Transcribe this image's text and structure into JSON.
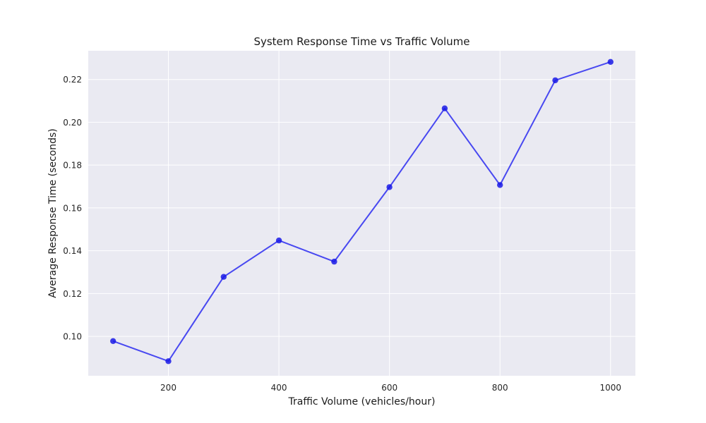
{
  "chart_data": {
    "type": "line",
    "title": "System Response Time vs Traffic Volume",
    "xlabel": "Traffic Volume (vehicles/hour)",
    "ylabel": "Average Response Time (seconds)",
    "x": [
      100,
      200,
      300,
      400,
      500,
      600,
      700,
      800,
      900,
      1000
    ],
    "series": [
      {
        "values": [
          0.0978,
          0.0884,
          0.1278,
          0.1448,
          0.1349,
          0.1697,
          0.2065,
          0.1707,
          0.2196,
          0.2282
        ]
      }
    ],
    "xlim": [
      55,
      1045
    ],
    "ylim": [
      0.0816,
      0.2334
    ],
    "xticks": [
      200,
      400,
      600,
      800,
      1000
    ],
    "xtick_labels": [
      "200",
      "400",
      "600",
      "800",
      "1000"
    ],
    "yticks": [
      0.1,
      0.12,
      0.14,
      0.16,
      0.18,
      0.2,
      0.22
    ],
    "ytick_labels": [
      "0.10",
      "0.12",
      "0.14",
      "0.16",
      "0.18",
      "0.20",
      "0.22"
    ],
    "grid": true,
    "colors": {
      "line": "#1f1ff0",
      "marker": "#1a1ae6",
      "plot_background": "#eaeaf2",
      "grid": "#ffffff"
    }
  }
}
